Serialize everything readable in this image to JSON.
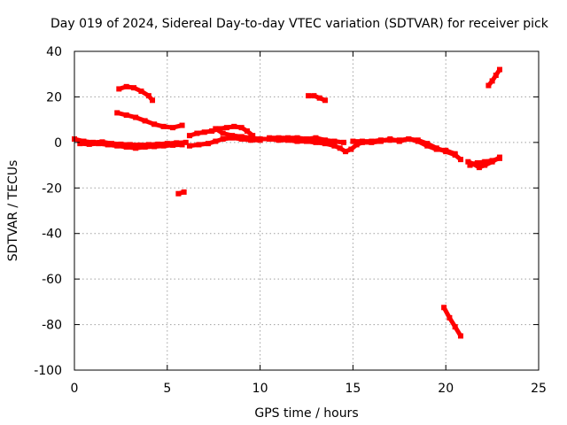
{
  "chart_data": {
    "type": "scatter",
    "title": "Day 019 of 2024, Sidereal Day-to-day VTEC variation (SDTVAR) for receiver pick",
    "xlabel": "GPS time / hours",
    "ylabel": "SDTVAR / TECUs",
    "xlim": [
      0,
      25
    ],
    "ylim": [
      -100,
      40
    ],
    "xticks": [
      0,
      5,
      10,
      15,
      20,
      25
    ],
    "yticks": [
      -100,
      -80,
      -60,
      -40,
      -20,
      0,
      20,
      40
    ],
    "xtick_labels": [
      "0",
      "5",
      "10",
      "15",
      "20",
      "25"
    ],
    "ytick_labels": [
      "-100",
      "-80",
      "-60",
      "-40",
      "-20",
      "0",
      "20",
      "40"
    ],
    "grid": true,
    "legend": false,
    "series_color": "#ff0000",
    "series": [
      {
        "values": [
          [
            0.0,
            1.5
          ],
          [
            0.5,
            0.5
          ],
          [
            1.0,
            0.0
          ],
          [
            1.5,
            0.2
          ],
          [
            2.0,
            -0.5
          ],
          [
            2.5,
            -0.8
          ],
          [
            3.0,
            -1.0
          ],
          [
            3.5,
            -1.2
          ],
          [
            4.0,
            -1.0
          ],
          [
            4.5,
            -0.8
          ],
          [
            5.0,
            -0.5
          ],
          [
            5.5,
            -0.2
          ],
          [
            6.0,
            0.0
          ]
        ]
      },
      {
        "values": [
          [
            0.3,
            -0.5
          ],
          [
            0.8,
            -0.8
          ],
          [
            1.3,
            -0.5
          ],
          [
            1.8,
            -1.0
          ],
          [
            2.3,
            -1.5
          ],
          [
            2.8,
            -2.0
          ],
          [
            3.3,
            -2.5
          ],
          [
            3.8,
            -2.0
          ],
          [
            4.3,
            -1.8
          ],
          [
            4.8,
            -1.5
          ],
          [
            5.3,
            -1.2
          ],
          [
            5.8,
            -1.0
          ]
        ]
      },
      {
        "values": [
          [
            2.3,
            13.0
          ],
          [
            2.8,
            12.0
          ],
          [
            3.3,
            11.0
          ],
          [
            3.8,
            9.5
          ],
          [
            4.3,
            8.0
          ],
          [
            4.8,
            7.0
          ],
          [
            5.3,
            6.5
          ],
          [
            5.8,
            7.5
          ]
        ]
      },
      {
        "values": [
          [
            2.4,
            23.5
          ],
          [
            2.8,
            24.5
          ],
          [
            3.2,
            24.0
          ],
          [
            3.6,
            22.5
          ],
          [
            4.0,
            20.5
          ],
          [
            4.2,
            18.5
          ]
        ]
      },
      {
        "values": [
          [
            5.6,
            -22.5
          ],
          [
            5.9,
            -21.8
          ]
        ]
      },
      {
        "values": [
          [
            6.2,
            -1.5
          ],
          [
            6.7,
            -1.0
          ],
          [
            7.2,
            -0.5
          ],
          [
            7.6,
            0.5
          ],
          [
            8.0,
            1.5
          ],
          [
            8.5,
            2.0
          ],
          [
            9.0,
            1.5
          ],
          [
            9.5,
            1.0
          ],
          [
            10.0,
            1.0
          ]
        ]
      },
      {
        "values": [
          [
            6.2,
            3.0
          ],
          [
            6.6,
            4.0
          ],
          [
            7.0,
            4.5
          ],
          [
            7.4,
            5.0
          ],
          [
            7.8,
            6.0
          ],
          [
            8.2,
            6.5
          ],
          [
            8.6,
            7.0
          ],
          [
            9.0,
            6.5
          ],
          [
            9.3,
            5.0
          ],
          [
            9.6,
            3.0
          ]
        ]
      },
      {
        "values": [
          [
            7.6,
            6.0
          ],
          [
            8.0,
            4.0
          ],
          [
            8.5,
            3.0
          ],
          [
            9.0,
            2.5
          ],
          [
            9.5,
            2.0
          ],
          [
            10.0,
            1.5
          ],
          [
            10.5,
            1.5
          ],
          [
            11.0,
            1.0
          ],
          [
            11.5,
            1.0
          ],
          [
            12.0,
            0.5
          ],
          [
            12.5,
            0.5
          ],
          [
            13.0,
            0.0
          ],
          [
            13.5,
            -0.5
          ],
          [
            14.0,
            -1.5
          ],
          [
            14.3,
            -2.5
          ],
          [
            14.6,
            -4.0
          ],
          [
            14.9,
            -3.0
          ],
          [
            15.2,
            -1.0
          ],
          [
            15.5,
            0.0
          ],
          [
            16.0,
            0.0
          ],
          [
            16.5,
            0.5
          ],
          [
            17.0,
            1.5
          ],
          [
            17.5,
            0.5
          ],
          [
            18.0,
            1.5
          ],
          [
            18.5,
            1.0
          ],
          [
            19.0,
            -0.5
          ],
          [
            19.5,
            -2.5
          ],
          [
            20.0,
            -4.0
          ],
          [
            20.5,
            -5.5
          ],
          [
            20.8,
            -7.5
          ]
        ]
      },
      {
        "values": [
          [
            10.5,
            2.0
          ],
          [
            11.0,
            2.0
          ],
          [
            11.5,
            2.0
          ],
          [
            12.0,
            2.0
          ],
          [
            12.5,
            1.5
          ],
          [
            13.0,
            2.0
          ],
          [
            13.5,
            1.0
          ],
          [
            14.0,
            0.5
          ],
          [
            14.5,
            0.0
          ]
        ]
      },
      {
        "values": [
          [
            12.6,
            20.5
          ],
          [
            12.9,
            20.5
          ],
          [
            13.2,
            19.5
          ],
          [
            13.5,
            18.5
          ]
        ]
      },
      {
        "values": [
          [
            15.0,
            0.5
          ],
          [
            15.5,
            0.5
          ],
          [
            16.0,
            0.5
          ],
          [
            16.5,
            1.0
          ],
          [
            17.0,
            1.0
          ],
          [
            17.5,
            1.0
          ],
          [
            18.0,
            1.5
          ],
          [
            18.5,
            0.5
          ],
          [
            19.0,
            -1.5
          ],
          [
            19.5,
            -3.0
          ],
          [
            20.0,
            -3.5
          ],
          [
            20.5,
            -5.0
          ]
        ]
      },
      {
        "values": [
          [
            19.9,
            -72.5
          ],
          [
            20.2,
            -77.0
          ],
          [
            20.5,
            -81.0
          ],
          [
            20.8,
            -85.0
          ]
        ]
      },
      {
        "values": [
          [
            21.2,
            -8.5
          ],
          [
            21.5,
            -9.5
          ],
          [
            21.8,
            -11.0
          ],
          [
            22.1,
            -10.0
          ],
          [
            22.5,
            -8.5
          ],
          [
            22.9,
            -6.5
          ]
        ]
      },
      {
        "values": [
          [
            21.3,
            -10.0
          ],
          [
            21.7,
            -9.0
          ],
          [
            22.1,
            -8.5
          ],
          [
            22.5,
            -8.0
          ],
          [
            22.9,
            -7.0
          ]
        ]
      },
      {
        "values": [
          [
            22.3,
            25.0
          ],
          [
            22.5,
            27.0
          ],
          [
            22.7,
            29.5
          ],
          [
            22.9,
            32.0
          ]
        ]
      }
    ]
  }
}
